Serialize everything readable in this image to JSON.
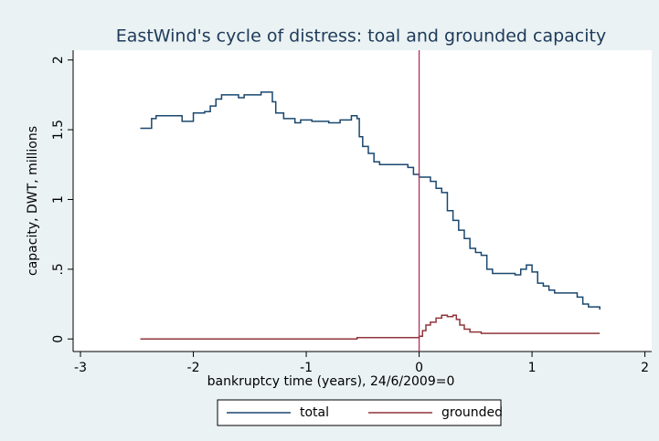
{
  "chart_data": {
    "type": "line",
    "connect": "step",
    "title": "EastWind's cycle of distress: toal and grounded capacity",
    "x_label": "bankruptcy time (years), 24/6/2009=0",
    "y_label": "capacity, DWT, millions",
    "xlim": [
      -3.065,
      2.06
    ],
    "xticks": [
      -3,
      -2,
      -1,
      0,
      1,
      2
    ],
    "ylim": [
      -0.09,
      2.07
    ],
    "yticks": [
      0,
      {
        "value": 0.5,
        "label": ".5"
      },
      1,
      1.5,
      2
    ],
    "xline": 0,
    "xline_color": "#b0305a",
    "legend": "bottom",
    "series": [
      {
        "name": "total",
        "color": "#1a476f",
        "x": [
          -2.47,
          -2.37,
          -2.33,
          -2.1,
          -2.0,
          -1.9,
          -1.85,
          -1.8,
          -1.75,
          -1.6,
          -1.55,
          -1.4,
          -1.3,
          -1.27,
          -1.2,
          -1.1,
          -1.05,
          -0.95,
          -0.8,
          -0.7,
          -0.6,
          -0.55,
          -0.53,
          -0.5,
          -0.45,
          -0.4,
          -0.35,
          -0.1,
          -0.05,
          0,
          0.1,
          0.15,
          0.2,
          0.25,
          0.3,
          0.35,
          0.4,
          0.45,
          0.5,
          0.55,
          0.6,
          0.65,
          0.85,
          0.9,
          0.95,
          1.0,
          1.05,
          1.1,
          1.15,
          1.2,
          1.4,
          1.45,
          1.5,
          1.6
        ],
        "values": [
          1.51,
          1.58,
          1.6,
          1.56,
          1.62,
          1.63,
          1.67,
          1.72,
          1.75,
          1.73,
          1.75,
          1.77,
          1.7,
          1.62,
          1.58,
          1.55,
          1.57,
          1.56,
          1.55,
          1.57,
          1.6,
          1.58,
          1.45,
          1.38,
          1.33,
          1.27,
          1.25,
          1.23,
          1.18,
          1.16,
          1.13,
          1.08,
          1.05,
          0.92,
          0.85,
          0.78,
          0.72,
          0.65,
          0.62,
          0.6,
          0.5,
          0.47,
          0.46,
          0.5,
          0.53,
          0.48,
          0.4,
          0.38,
          0.35,
          0.33,
          0.3,
          0.25,
          0.23,
          0.21
        ]
      },
      {
        "name": "grounded",
        "color": "#90353b",
        "x": [
          -2.47,
          -0.55,
          0,
          0.03,
          0.06,
          0.1,
          0.15,
          0.2,
          0.25,
          0.3,
          0.33,
          0.36,
          0.4,
          0.45,
          0.55,
          1.6
        ],
        "values": [
          0,
          0.01,
          0.02,
          0.06,
          0.1,
          0.12,
          0.15,
          0.17,
          0.16,
          0.17,
          0.14,
          0.1,
          0.07,
          0.05,
          0.04,
          0.04
        ]
      }
    ]
  }
}
